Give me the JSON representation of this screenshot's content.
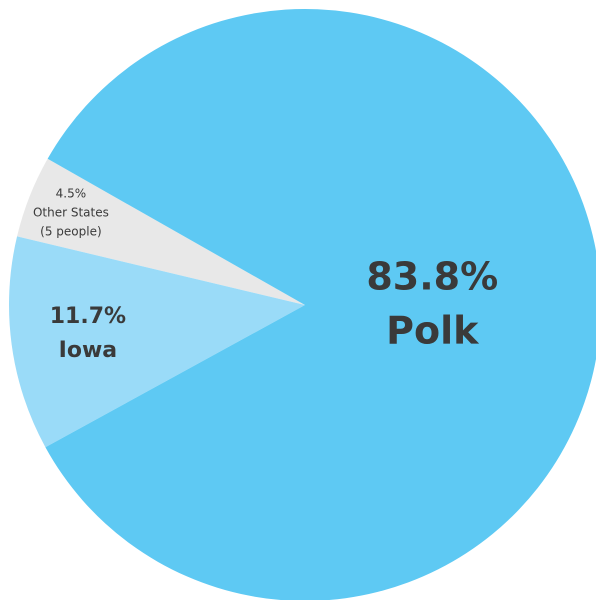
{
  "chart_data": {
    "type": "pie",
    "categories": [
      "Other States",
      "Iowa",
      "Polk"
    ],
    "values": [
      4.5,
      11.7,
      83.8
    ],
    "value_labels": [
      "4.5%",
      "11.7%",
      "83.8%"
    ],
    "colors": [
      "#e8e8e8",
      "#9adbf8",
      "#5ec9f3"
    ],
    "annotations": [
      "(5 people)"
    ]
  }
}
